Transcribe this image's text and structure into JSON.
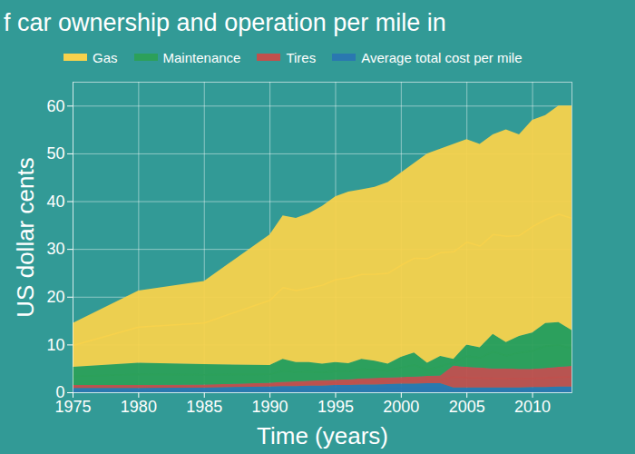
{
  "chart_data": {
    "type": "area",
    "title": "f car ownership and operation per mile in",
    "x_label": "Time (years)",
    "y_label": "US dollar cents",
    "stacked": true,
    "grid": true,
    "legend": "top",
    "x": [
      1975,
      1980,
      1985,
      1990,
      1991,
      1992,
      1993,
      1994,
      1995,
      1996,
      1997,
      1998,
      1999,
      2000,
      2001,
      2002,
      2003,
      2004,
      2005,
      2006,
      2007,
      2008,
      2009,
      2010,
      2011,
      2012,
      2013
    ],
    "xlim": [
      1975,
      2013
    ],
    "xticks": [
      1975,
      1980,
      1985,
      1990,
      1995,
      2000,
      2005,
      2010
    ],
    "ylim": [
      0,
      65
    ],
    "yticks": [
      0,
      10,
      20,
      30,
      40,
      50,
      60
    ],
    "series": [
      {
        "name": "Average total cost per mile",
        "color": "#2a78b0",
        "values": [
          0.9,
          0.9,
          1.0,
          1.2,
          1.3,
          1.3,
          1.4,
          1.4,
          1.5,
          1.5,
          1.6,
          1.6,
          1.7,
          1.8,
          1.8,
          1.9,
          1.9,
          1.0,
          1.0,
          1.0,
          1.0,
          1.0,
          1.0,
          1.1,
          1.1,
          1.2,
          1.2
        ]
      },
      {
        "name": "Tires",
        "color": "#c0504d",
        "values": [
          0.6,
          0.6,
          0.6,
          0.8,
          0.9,
          1.0,
          1.0,
          1.1,
          1.1,
          1.2,
          1.3,
          1.4,
          1.4,
          1.4,
          1.5,
          1.5,
          1.6,
          4.6,
          4.3,
          4.2,
          4.0,
          4.0,
          3.9,
          3.8,
          4.0,
          4.1,
          4.3
        ]
      },
      {
        "name": "Maintenance",
        "color": "#2ca05a",
        "values": [
          3.8,
          4.7,
          4.3,
          3.7,
          4.8,
          4.0,
          3.9,
          3.5,
          3.7,
          3.4,
          4.1,
          3.6,
          2.9,
          4.2,
          5.0,
          2.8,
          4.1,
          1.4,
          4.7,
          4.2,
          7.2,
          5.5,
          6.9,
          7.6,
          9.4,
          9.4,
          7.5
        ]
      },
      {
        "name": "Gas",
        "color": "#f7d24c",
        "values": [
          9.2,
          15.1,
          17.4,
          27.3,
          30.0,
          30.2,
          31.2,
          33.0,
          34.7,
          35.9,
          35.5,
          36.4,
          38.0,
          38.6,
          39.7,
          43.8,
          43.4,
          45.0,
          43.0,
          42.6,
          41.8,
          44.5,
          42.2,
          44.5,
          43.5,
          45.3,
          47.0
        ]
      }
    ]
  }
}
